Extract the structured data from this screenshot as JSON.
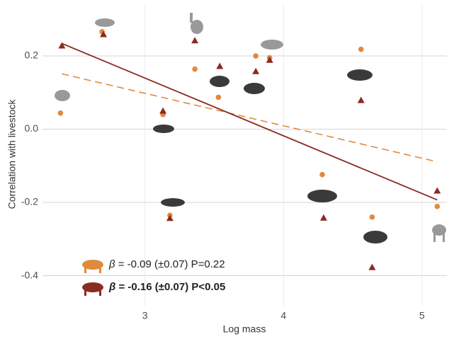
{
  "chart_data": {
    "type": "scatter",
    "x_label": "Log mass",
    "y_label": "Correlation with livestock",
    "xlim": [
      2.26,
      5.18
    ],
    "ylim": [
      -0.482,
      0.343
    ],
    "xticks": [
      3,
      4,
      5
    ],
    "yticks": [
      -0.4,
      -0.2,
      {
        "value": 0,
        "label": "0.0"
      },
      0.2
    ],
    "grid": true,
    "series": [
      {
        "marker": "circle",
        "color": "#e08a3c",
        "line_style": "dashed",
        "label_symbol": "β",
        "label": "= -0.09 (±0.07)  P=0.22",
        "label_bold": false,
        "x": [
          2.39,
          2.69,
          3.13,
          3.18,
          3.36,
          3.53,
          3.8,
          3.9,
          4.28,
          4.56,
          4.64,
          5.11
        ],
        "values": [
          0.044,
          0.266,
          0.04,
          -0.235,
          0.164,
          0.087,
          0.2,
          0.195,
          -0.124,
          0.218,
          -0.24,
          -0.211
        ],
        "fit": {
          "x": [
            2.4,
            5.11
          ],
          "y": [
            0.151,
            -0.089
          ]
        }
      },
      {
        "marker": "triangle",
        "color": "#8b2b22",
        "line_style": "solid",
        "label_symbol": "β",
        "label": "= -0.16 (±0.07)  P<0.05",
        "label_bold": true,
        "x": [
          2.4,
          2.7,
          3.13,
          3.18,
          3.36,
          3.54,
          3.8,
          3.9,
          4.29,
          4.56,
          4.64,
          5.11
        ],
        "values": [
          0.228,
          0.259,
          0.05,
          -0.243,
          0.242,
          0.172,
          0.158,
          0.189,
          -0.242,
          0.079,
          -0.377,
          -0.168
        ],
        "fit": {
          "x": [
            2.4,
            5.11
          ],
          "y": [
            0.234,
            -0.193
          ]
        }
      }
    ]
  }
}
